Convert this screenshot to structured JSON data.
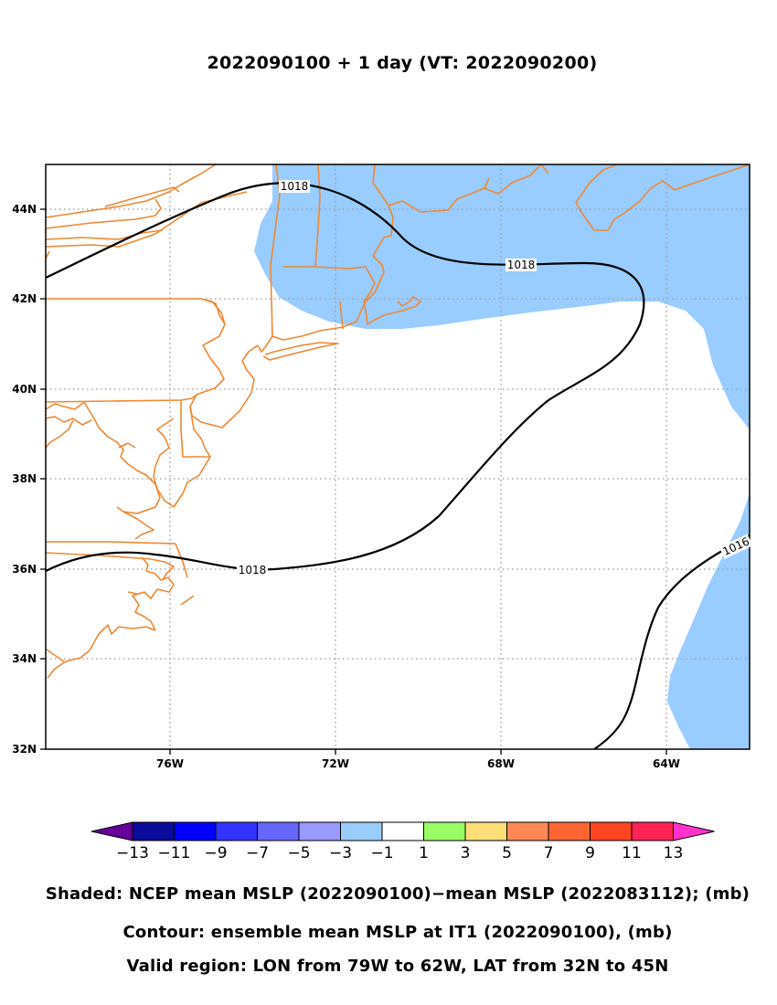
{
  "title": "2022090100 + 1 day (VT: 2022090200)",
  "map": {
    "lon_range": [
      -79,
      -62
    ],
    "lat_range": [
      32,
      45
    ],
    "lon_ticks": [
      "76W",
      "72W",
      "68W",
      "64W"
    ],
    "lat_ticks": [
      "44N",
      "42N",
      "40N",
      "38N",
      "36N",
      "34N",
      "32N"
    ],
    "gridlines": "dotted",
    "coastline_color": "#ee8833",
    "shade_color": "#99ccff",
    "contour_color": "#000000",
    "contour_labels": [
      "1018",
      "1018",
      "1018",
      "1016"
    ]
  },
  "colorbar": {
    "labels": [
      "-13",
      "-11",
      "-9",
      "-7",
      "-5",
      "-3",
      "-1",
      "1",
      "3",
      "5",
      "7",
      "9",
      "11",
      "13"
    ],
    "colors": [
      "#0a0a9b",
      "#0000ff",
      "#3333ff",
      "#6666ff",
      "#9999ff",
      "#99ccff",
      "#ffffff",
      "#99ff66",
      "#ffdd77",
      "#ff8855",
      "#ff6633",
      "#ff4422",
      "#ff2255"
    ],
    "left_arrow_color": "#660099",
    "right_arrow_color": "#ff33cc"
  },
  "captions": {
    "shaded": "Shaded: NCEP mean MSLP (2022090100)−mean MSLP (2022083112); (mb)",
    "contour": "Contour: ensemble mean MSLP at IT1 (2022090100), (mb)",
    "region": "Valid region: LON from 79W to 62W, LAT from 32N to 45N"
  }
}
